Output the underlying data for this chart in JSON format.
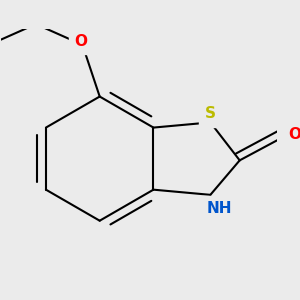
{
  "background_color": "#ebebeb",
  "bond_color": "#000000",
  "bond_width": 1.5,
  "atoms": {
    "S": {
      "color": "#bbbb00",
      "fontsize": 11
    },
    "O_carbonyl": {
      "color": "#ff0000",
      "fontsize": 11
    },
    "O_ethoxy": {
      "color": "#ff0000",
      "fontsize": 11
    },
    "N": {
      "color": "#0055cc",
      "fontsize": 11
    }
  },
  "figsize": [
    3.0,
    3.0
  ],
  "dpi": 100,
  "xlim": [
    -0.75,
    0.85
  ],
  "ylim": [
    -0.65,
    0.75
  ]
}
